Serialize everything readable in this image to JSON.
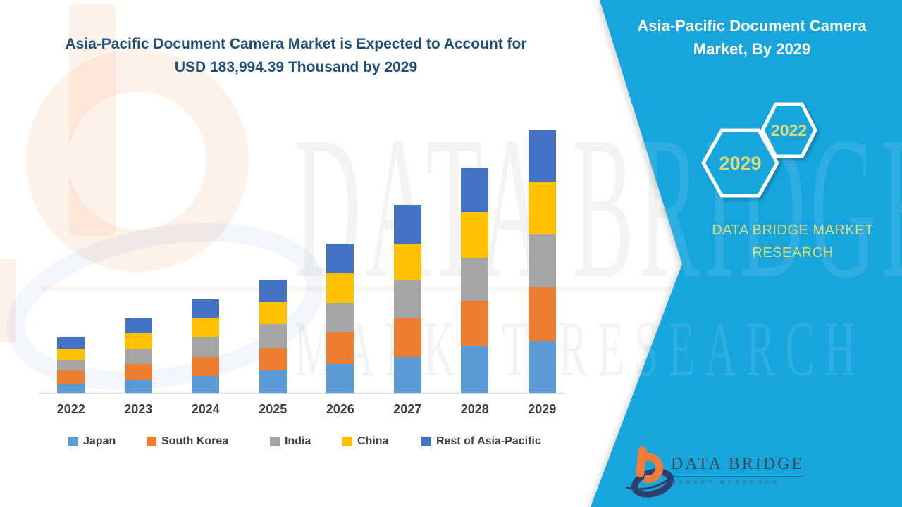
{
  "colors": {
    "panel_blue": "#17a5dd",
    "title_navy": "#1f4e79",
    "accent_khaki": "#d9da78"
  },
  "title": {
    "line1": "Asia-Pacific Document Camera Market is Expected to Account for",
    "line2": "USD 183,994.39 Thousand by 2029"
  },
  "side_panel": {
    "heading_line1": "Asia-Pacific Document Camera",
    "heading_line2": "Market, By 2029",
    "hexagons": [
      {
        "label": "2029"
      },
      {
        "label": "2022"
      }
    ],
    "brand_caption_line1": "DATA BRIDGE MARKET",
    "brand_caption_line2": "RESEARCH",
    "footer_logo": {
      "name": "DATA BRIDGE",
      "subtext": "MARKET RESEARCH"
    }
  },
  "watermark": {
    "line1": "DATA BRIDGE",
    "line2": "MARKET RESEARCH"
  },
  "chart_data": {
    "type": "bar",
    "stacked": true,
    "title": "Asia-Pacific Document Camera Market is Expected to Account for USD 183,994.39 Thousand by 2029",
    "unit": "USD Thousand",
    "categories": [
      "2022",
      "2023",
      "2024",
      "2025",
      "2026",
      "2027",
      "2028",
      "2029"
    ],
    "series": [
      {
        "name": "Japan",
        "color": "#5B9BD5",
        "values": [
          6500,
          9300,
          11800,
          16100,
          20000,
          24900,
          32400,
          36600
        ]
      },
      {
        "name": "South Korea",
        "color": "#ED7D31",
        "values": [
          9300,
          11000,
          13400,
          15600,
          22100,
          27000,
          31900,
          36900
        ]
      },
      {
        "name": "India",
        "color": "#A5A5A5",
        "values": [
          7400,
          10300,
          14100,
          16400,
          20800,
          27000,
          30300,
          36900
        ]
      },
      {
        "name": "China",
        "color": "#FFC000",
        "values": [
          7900,
          11000,
          13100,
          15100,
          20900,
          25400,
          31600,
          37100
        ]
      },
      {
        "name": "Rest of Asia-Pacific",
        "color": "#4472C4",
        "values": [
          7700,
          10300,
          13100,
          16000,
          20500,
          27000,
          30700,
          36494.39
        ]
      }
    ],
    "totals_by_year": [
      38800,
      51900,
      65500,
      79200,
      104300,
      131300,
      156900,
      183994.39
    ],
    "values_estimated_from_pixels": true,
    "xlabel": "",
    "ylabel": "",
    "y_axis_visible": false,
    "grid": false,
    "legend_position": "bottom"
  }
}
